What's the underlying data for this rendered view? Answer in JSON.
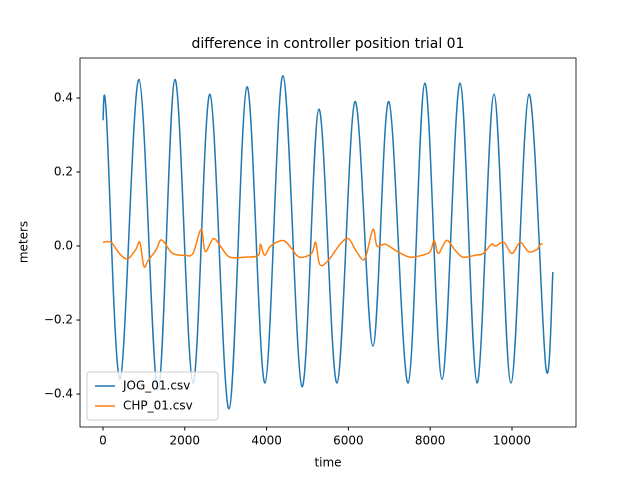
{
  "chart_data": {
    "type": "line",
    "title": "difference in controller position trial 01",
    "xlabel": "time",
    "ylabel": "meters",
    "xlim": [
      -562,
      11565
    ],
    "ylim": [
      -0.489,
      0.508
    ],
    "xticks": [
      0,
      2000,
      4000,
      6000,
      8000,
      10000
    ],
    "yticks": [
      {
        "value": -0.4,
        "label": "−0.4"
      },
      {
        "value": -0.2,
        "label": "−0.2"
      },
      {
        "value": 0.0,
        "label": "0.0"
      },
      0.2,
      0.4
    ],
    "grid": false,
    "legend": "lower left",
    "series": [
      {
        "name": "JOG_01.csv",
        "color": "#1f77b4",
        "x": [
          0,
          80,
          420,
          880,
          1345,
          1760,
          2200,
          2616,
          3080,
          3520,
          3960,
          4400,
          4865,
          5280,
          5720,
          6160,
          6600,
          6990,
          7460,
          7870,
          8290,
          8730,
          9145,
          9560,
          9975,
          10415,
          10830,
          11000
        ],
        "values": [
          0.34,
          0.36,
          -0.36,
          0.45,
          -0.39,
          0.45,
          -0.37,
          0.41,
          -0.44,
          0.43,
          -0.37,
          0.46,
          -0.38,
          0.37,
          -0.37,
          0.39,
          -0.27,
          0.39,
          -0.37,
          0.44,
          -0.36,
          0.44,
          -0.37,
          0.41,
          -0.37,
          0.41,
          -0.33,
          -0.07
        ]
      },
      {
        "name": "CHP_01.csv",
        "color": "#ff7f0e",
        "x": [
          0,
          200,
          400,
          600,
          800,
          900,
          1000,
          1100,
          1300,
          1400,
          1500,
          1700,
          2000,
          2200,
          2400,
          2500,
          2700,
          2900,
          3100,
          3500,
          3800,
          3850,
          3950,
          4100,
          4400,
          4600,
          4800,
          5100,
          5200,
          5300,
          5500,
          5800,
          6000,
          6200,
          6400,
          6600,
          6700,
          6900,
          7200,
          7500,
          7800,
          8000,
          8100,
          8200,
          8400,
          8600,
          8800,
          9100,
          9300,
          9500,
          9600,
          9800,
          10000,
          10200,
          10400,
          10600,
          10700,
          10750
        ],
        "values": [
          0.01,
          0.01,
          -0.02,
          -0.035,
          -0.01,
          0.01,
          -0.055,
          -0.04,
          -0.01,
          0.015,
          0.01,
          -0.02,
          -0.025,
          -0.02,
          0.045,
          -0.015,
          0.02,
          -0.005,
          -0.03,
          -0.03,
          -0.025,
          0.005,
          -0.025,
          0.0,
          0.015,
          -0.005,
          -0.03,
          -0.02,
          0.01,
          -0.05,
          -0.04,
          0.005,
          0.02,
          -0.015,
          -0.035,
          0.045,
          0.0,
          0.005,
          -0.015,
          -0.03,
          -0.025,
          -0.015,
          0.015,
          -0.02,
          0.015,
          -0.01,
          -0.03,
          -0.025,
          -0.02,
          0.005,
          0.0,
          0.01,
          -0.02,
          0.01,
          -0.015,
          -0.01,
          0.005,
          0.005
        ]
      }
    ]
  }
}
